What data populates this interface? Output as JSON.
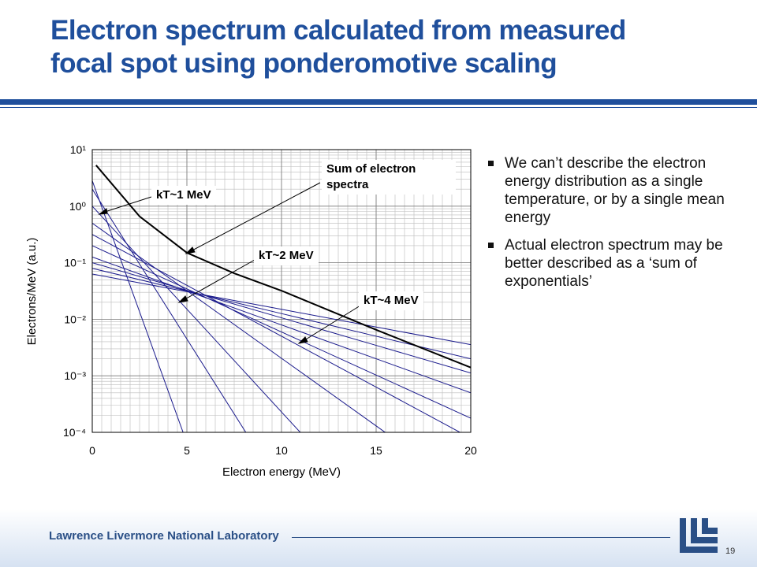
{
  "title": "Electron spectrum calculated from measured focal spot using ponderomotive scaling",
  "bullets": [
    "We can’t describe the electron energy distribution as a single temperature, or by a single mean energy",
    "Actual electron spectrum may be better described as a ‘sum of exponentials’"
  ],
  "footer": {
    "organization": "Lawrence Livermore National Laboratory",
    "page": "19"
  },
  "chart_data": {
    "type": "line",
    "xlabel": "Electron energy (MeV)",
    "ylabel": "Electrons/MeV (a.u.)",
    "xlim": [
      0,
      20
    ],
    "xticks": [
      0,
      5,
      10,
      15,
      20
    ],
    "ylim": [
      0.0001,
      10
    ],
    "yscale": "log",
    "yticks": [
      {
        "value": 10,
        "label": "10¹"
      },
      {
        "value": 1,
        "label": "10⁰"
      },
      {
        "value": 0.1,
        "label": "10⁻¹"
      },
      {
        "value": 0.01,
        "label": "10⁻²"
      },
      {
        "value": 0.001,
        "label": "10⁻³"
      },
      {
        "value": 0.0001,
        "label": "10⁻⁴"
      }
    ],
    "grid": true,
    "x": [
      0,
      5,
      10,
      15,
      20
    ],
    "series": [
      {
        "color": "#1a1a8c",
        "values": [
          2.82,
          6.5e-05,
          null,
          null,
          null
        ]
      },
      {
        "color": "#1a1a8c",
        "values": [
          2.0,
          0.00447,
          1e-05,
          null,
          null
        ]
      },
      {
        "color": "#1a1a8c",
        "values": [
          1.0,
          0.0151,
          0.000229,
          3.5e-06,
          null
        ]
      },
      {
        "color": "#1a1a8c",
        "values": [
          0.501,
          0.032,
          0.00204,
          0.00013,
          8.3e-06
        ]
      },
      {
        "color": "#1a1a8c",
        "values": [
          0.316,
          0.0398,
          0.00501,
          0.00063,
          7.9e-05
        ]
      },
      {
        "color": "#1a1a8c",
        "values": [
          0.2,
          0.0345,
          0.00596,
          0.00103,
          0.000178
        ]
      },
      {
        "color": "#1a1a8c",
        "values": [
          0.126,
          0.0316,
          0.00794,
          0.002,
          0.0005
        ]
      },
      {
        "color": "#1a1a8c",
        "values": [
          0.1,
          0.0325,
          0.0106,
          0.00345,
          0.00112
        ]
      },
      {
        "color": "#1a1a8c",
        "values": [
          0.0794,
          0.0316,
          0.0126,
          0.00501,
          0.002
        ]
      },
      {
        "color": "#1a1a8c",
        "values": [
          0.0631,
          0.0307,
          0.015,
          0.00729,
          0.00355
        ]
      },
      {
        "color": "#000000",
        "x": [
          0.2,
          2.5,
          5,
          7.5,
          10,
          15,
          20
        ],
        "values": [
          5.3,
          0.66,
          0.15,
          0.065,
          0.032,
          0.0065,
          0.0014
        ]
      }
    ],
    "annotations": [
      "kT~1 MeV",
      "Sum of electron spectra",
      "kT~2 MeV",
      "kT~4 MeV"
    ]
  }
}
